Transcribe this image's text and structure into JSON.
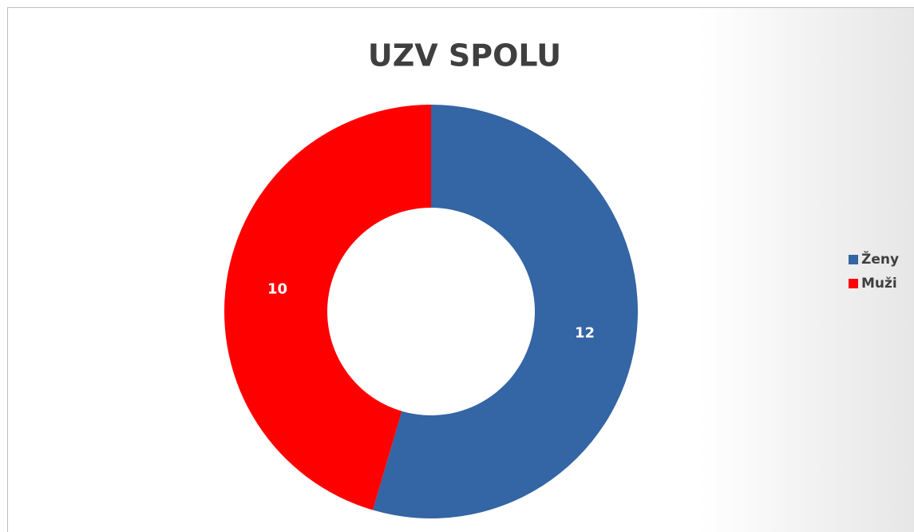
{
  "chart_data": {
    "type": "donut",
    "title": "UZV SPOLU",
    "categories": [
      "Ženy",
      "Muži"
    ],
    "values": [
      12,
      10
    ],
    "colors": [
      "#3465a4",
      "#ff0000"
    ],
    "legend": "right"
  }
}
